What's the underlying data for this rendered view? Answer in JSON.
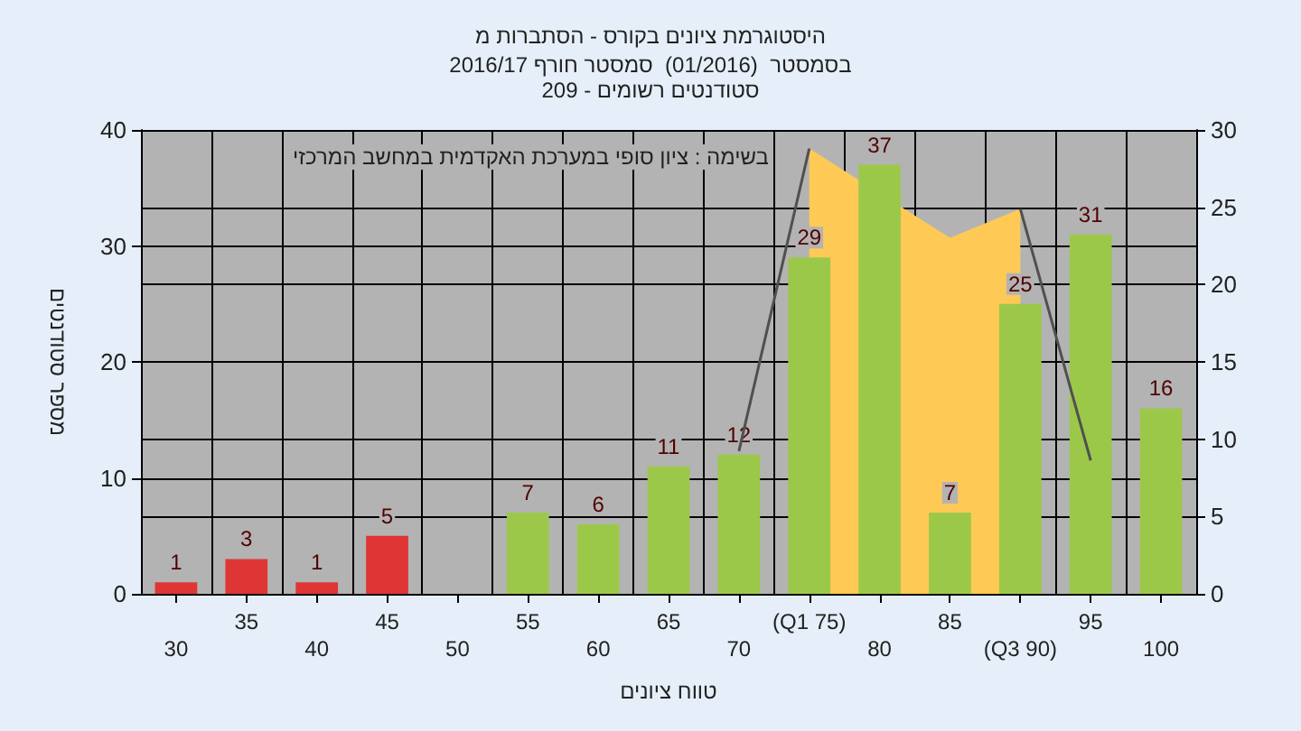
{
  "chart_data": {
    "type": "bar",
    "title": "היסטוגרמת ציונים בקורס - הסתברות מ",
    "subtitle": "בסמסטר  (01/2016)  סמסטר חורף 2016/17\nסטודנטים רשומים - 209",
    "xlabel": "טווח ציונים",
    "ylabel": "מספר סטודנטים",
    "annotations": [
      "בשימה : ציון סופי במערכת האקדמית במחשב המרכזי"
    ],
    "categories": [
      "30",
      "35",
      "40",
      "45",
      "50",
      "55",
      "60",
      "65",
      "70",
      "(Q1 75)",
      "80",
      "85",
      "(Q3 90)",
      "95",
      "100"
    ],
    "series": [
      {
        "type": "area",
        "color": "#ffc955",
        "values": [
          null,
          null,
          null,
          null,
          null,
          null,
          null,
          null,
          null,
          38.4,
          null,
          30.7,
          33.2,
          null,
          null
        ]
      },
      {
        "type": "line",
        "color": "#505050",
        "values": [
          null,
          null,
          null,
          null,
          null,
          null,
          null,
          null,
          12.3,
          38.4,
          null,
          null,
          33.2,
          11.5,
          null
        ]
      },
      {
        "values": [
          1,
          3,
          1,
          5,
          0,
          7,
          6,
          11,
          12,
          29,
          37,
          7,
          25,
          31,
          16
        ],
        "value_labels": [
          "1",
          "3",
          "1",
          "5",
          null,
          "7",
          "6",
          "11",
          "12",
          "29",
          "37",
          "7",
          "25",
          "31",
          "16"
        ],
        "colors": [
          "#e03535",
          "#e03535",
          "#e03535",
          "#e03535",
          "#9cc84a",
          "#9cc84a",
          "#9cc84a",
          "#9cc84a",
          "#9cc84a",
          "#9cc84a",
          "#9cc84a",
          "#9cc84a",
          "#9cc84a",
          "#9cc84a",
          "#9cc84a"
        ]
      }
    ],
    "ylim": [
      0,
      40
    ],
    "yticks": [
      0,
      10,
      20,
      30,
      40
    ],
    "y2lim": [
      0,
      30
    ],
    "y2ticks": [
      0,
      5,
      10,
      15,
      20,
      25,
      30
    ],
    "grid": true,
    "marker": "none"
  }
}
